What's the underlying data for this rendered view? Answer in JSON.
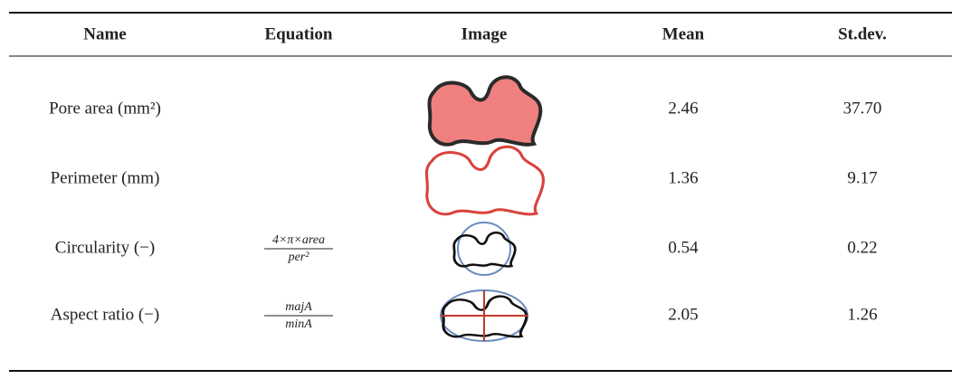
{
  "table": {
    "headers": [
      "Name",
      "Equation",
      "Image",
      "Mean",
      "St.dev."
    ],
    "rows": [
      {
        "name": "Pore area (mm²)",
        "mean": "2.46",
        "stdev": "37.70"
      },
      {
        "name": "Perimeter (mm)",
        "mean": "1.36",
        "stdev": "9.17"
      },
      {
        "name": "Circularity (−)",
        "equation": {
          "numerator": "4×π×area",
          "denominator": "per²"
        },
        "mean": "0.54",
        "stdev": "0.22"
      },
      {
        "name": "Aspect ratio (−)",
        "equation": {
          "numerator": "majA",
          "denominator": "minA"
        },
        "mean": "2.05",
        "stdev": "1.26"
      }
    ]
  }
}
